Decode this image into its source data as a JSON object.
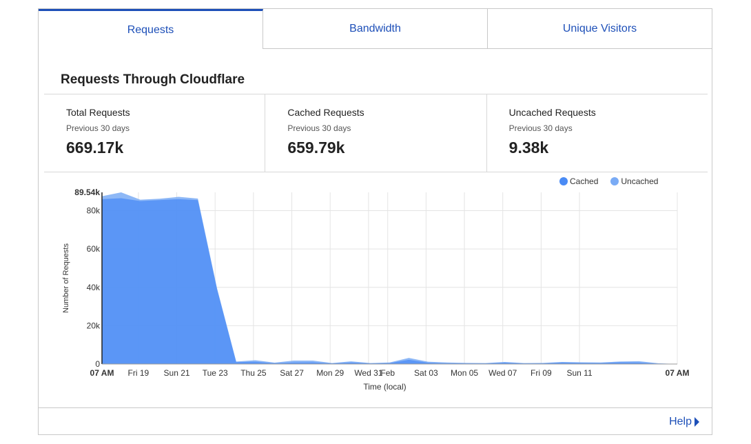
{
  "tabs": [
    {
      "label": "Requests",
      "active": true
    },
    {
      "label": "Bandwidth",
      "active": false
    },
    {
      "label": "Unique Visitors",
      "active": false
    }
  ],
  "section_title": "Requests Through Cloudflare",
  "stats": [
    {
      "label": "Total Requests",
      "period": "Previous 30 days",
      "value": "669.17k"
    },
    {
      "label": "Cached Requests",
      "period": "Previous 30 days",
      "value": "659.79k"
    },
    {
      "label": "Uncached Requests",
      "period": "Previous 30 days",
      "value": "9.38k"
    }
  ],
  "help_label": "Help",
  "colors": {
    "accent": "#1d4fb8",
    "cached": "#4a8bf5",
    "uncached": "#7aabf5"
  },
  "chart_data": {
    "type": "area",
    "ylabel": "Number of Requests",
    "xlabel": "Time (local)",
    "ylim": [
      0,
      89540
    ],
    "y_max_label": "89.54k",
    "y_ticks": [
      {
        "value": 0,
        "label": "0"
      },
      {
        "value": 20000,
        "label": "20k"
      },
      {
        "value": 40000,
        "label": "40k"
      },
      {
        "value": 60000,
        "label": "60k"
      },
      {
        "value": 80000,
        "label": "80k"
      }
    ],
    "x_range": [
      0,
      30
    ],
    "x_ticks": [
      {
        "x": 0,
        "label": "07 AM",
        "bold": true
      },
      {
        "x": 1.9,
        "label": "Fri 19"
      },
      {
        "x": 3.9,
        "label": "Sun 21"
      },
      {
        "x": 5.9,
        "label": "Tue 23"
      },
      {
        "x": 7.9,
        "label": "Thu 25"
      },
      {
        "x": 9.9,
        "label": "Sat 27"
      },
      {
        "x": 11.9,
        "label": "Mon 29"
      },
      {
        "x": 13.9,
        "label": "Wed 31"
      },
      {
        "x": 14.9,
        "label": "Feb"
      },
      {
        "x": 16.9,
        "label": "Sat 03"
      },
      {
        "x": 18.9,
        "label": "Mon 05"
      },
      {
        "x": 20.9,
        "label": "Wed 07"
      },
      {
        "x": 22.9,
        "label": "Fri 09"
      },
      {
        "x": 24.9,
        "label": "Sun 11"
      },
      {
        "x": 30,
        "label": "07 AM",
        "bold": true
      }
    ],
    "legend": [
      "Cached",
      "Uncached"
    ],
    "series": [
      {
        "name": "Cached",
        "x": [
          0,
          1,
          2,
          3,
          4,
          5,
          6,
          7,
          8,
          9,
          10,
          11,
          12,
          13,
          14,
          15,
          16,
          17,
          18,
          19,
          20,
          21,
          22,
          23,
          24,
          25,
          26,
          27,
          28,
          29,
          30
        ],
        "values": [
          86000,
          86500,
          85000,
          85500,
          86000,
          85500,
          39000,
          1000,
          1200,
          400,
          800,
          900,
          300,
          800,
          300,
          500,
          2200,
          700,
          400,
          300,
          300,
          700,
          300,
          300,
          800,
          600,
          500,
          900,
          800,
          200,
          0
        ]
      },
      {
        "name": "Uncached",
        "x": [
          0,
          1,
          2,
          3,
          4,
          5,
          6,
          7,
          8,
          9,
          10,
          11,
          12,
          13,
          14,
          15,
          16,
          17,
          18,
          19,
          20,
          21,
          22,
          23,
          24,
          25,
          26,
          27,
          28,
          29,
          30
        ],
        "values": [
          87500,
          89540,
          85700,
          86200,
          87200,
          86300,
          39500,
          1300,
          2000,
          700,
          1800,
          1800,
          500,
          1400,
          500,
          800,
          3200,
          1200,
          800,
          600,
          500,
          1100,
          500,
          600,
          1100,
          900,
          800,
          1300,
          1500,
          400,
          0
        ]
      }
    ]
  }
}
